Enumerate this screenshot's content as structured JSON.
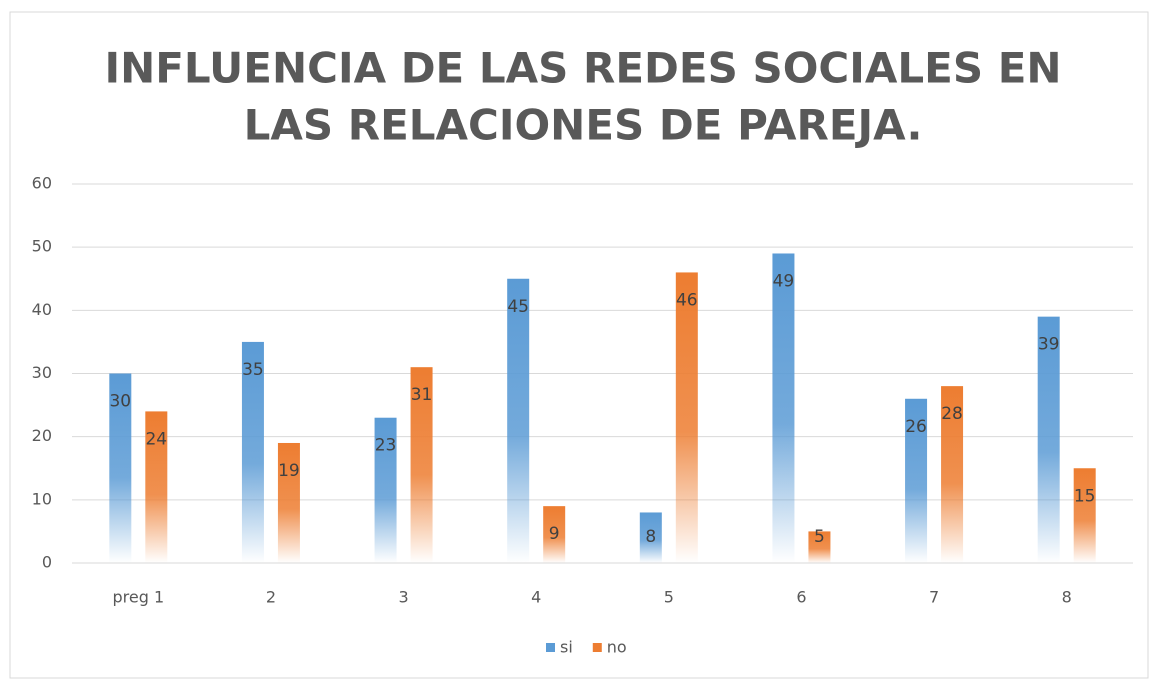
{
  "chart_data": {
    "type": "bar",
    "title": [
      "INFLUENCIA DE LAS REDES SOCIALES EN",
      "LAS RELACIONES DE PAREJA."
    ],
    "categories": [
      "preg 1",
      "2",
      "3",
      "4",
      "5",
      "6",
      "7",
      "8"
    ],
    "series": [
      {
        "name": "si",
        "color": "#5b9bd5",
        "values": [
          30,
          35,
          23,
          45,
          8,
          49,
          26,
          39
        ]
      },
      {
        "name": "no",
        "color": "#ed7d31",
        "values": [
          24,
          19,
          31,
          9,
          46,
          5,
          28,
          15
        ]
      }
    ],
    "ylim": [
      0,
      60
    ],
    "yticks": [
      0,
      10,
      20,
      30,
      40,
      50,
      60
    ],
    "grid": true,
    "legend": "bottom"
  }
}
